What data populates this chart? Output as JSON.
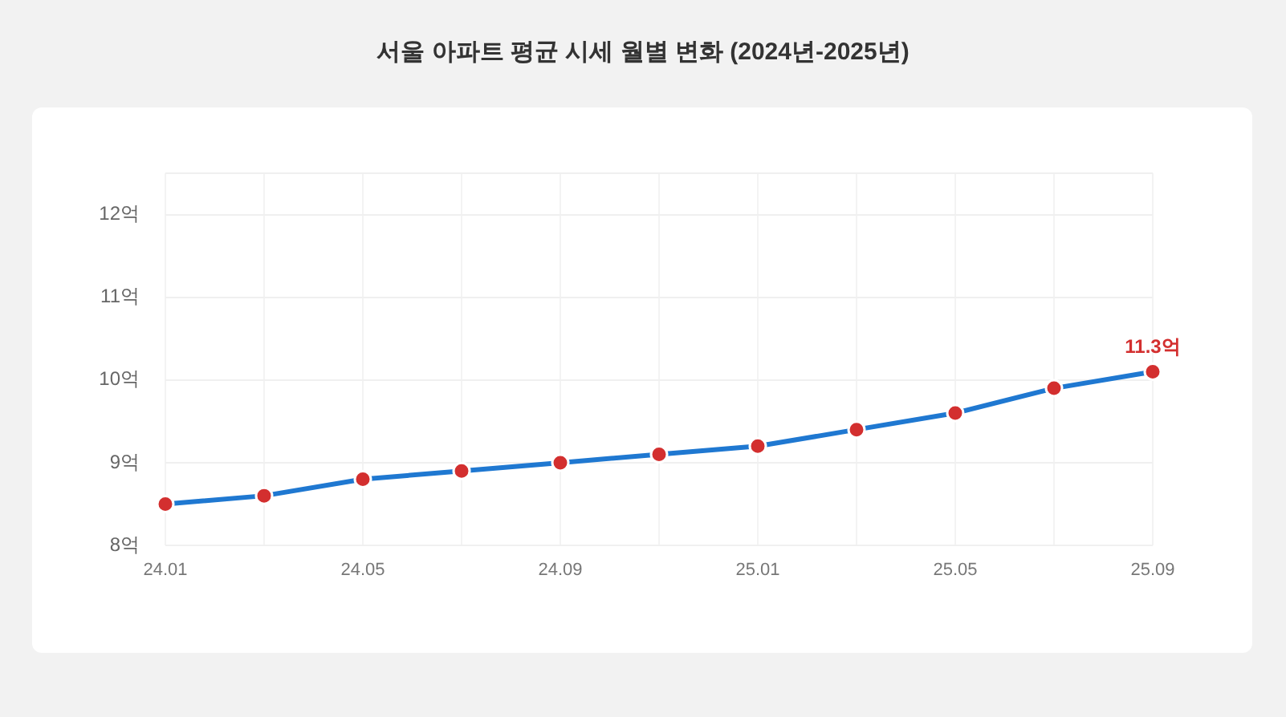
{
  "chart_data": {
    "type": "line",
    "title": "서울 아파트 평균 시세 월별 변화 (2024년-2025년)",
    "categories": [
      "24.01",
      null,
      "24.05",
      null,
      "24.09",
      null,
      "25.01",
      null,
      "25.05",
      null,
      "25.09"
    ],
    "series": [
      {
        "color": "#1f78d1",
        "colors": [
          "#d32f2f",
          "#d32f2f",
          "#d32f2f",
          "#d32f2f",
          "#d32f2f",
          "#d32f2f",
          "#d32f2f",
          "#d32f2f",
          "#d32f2f",
          "#d32f2f",
          "#d32f2f"
        ],
        "values": [
          8.5,
          8.6,
          8.8,
          8.9,
          9.0,
          9.1,
          9.2,
          9.4,
          9.6,
          9.9,
          10.1
        ]
      }
    ],
    "ylim": [
      8,
      12.5
    ],
    "yticks": [
      {
        "value": 8,
        "label": "8억"
      },
      {
        "value": 9,
        "label": "9억"
      },
      {
        "value": 10,
        "label": "10억"
      },
      {
        "value": 11,
        "label": "11억"
      },
      {
        "value": 12,
        "label": "12억"
      },
      {
        "value": 12.5,
        "label": null
      }
    ],
    "grid": true,
    "marker": "circle",
    "line_style": "solid",
    "annotations": [
      {
        "text": "11.3억",
        "x": "25.09",
        "y": 10.1
      }
    ]
  }
}
